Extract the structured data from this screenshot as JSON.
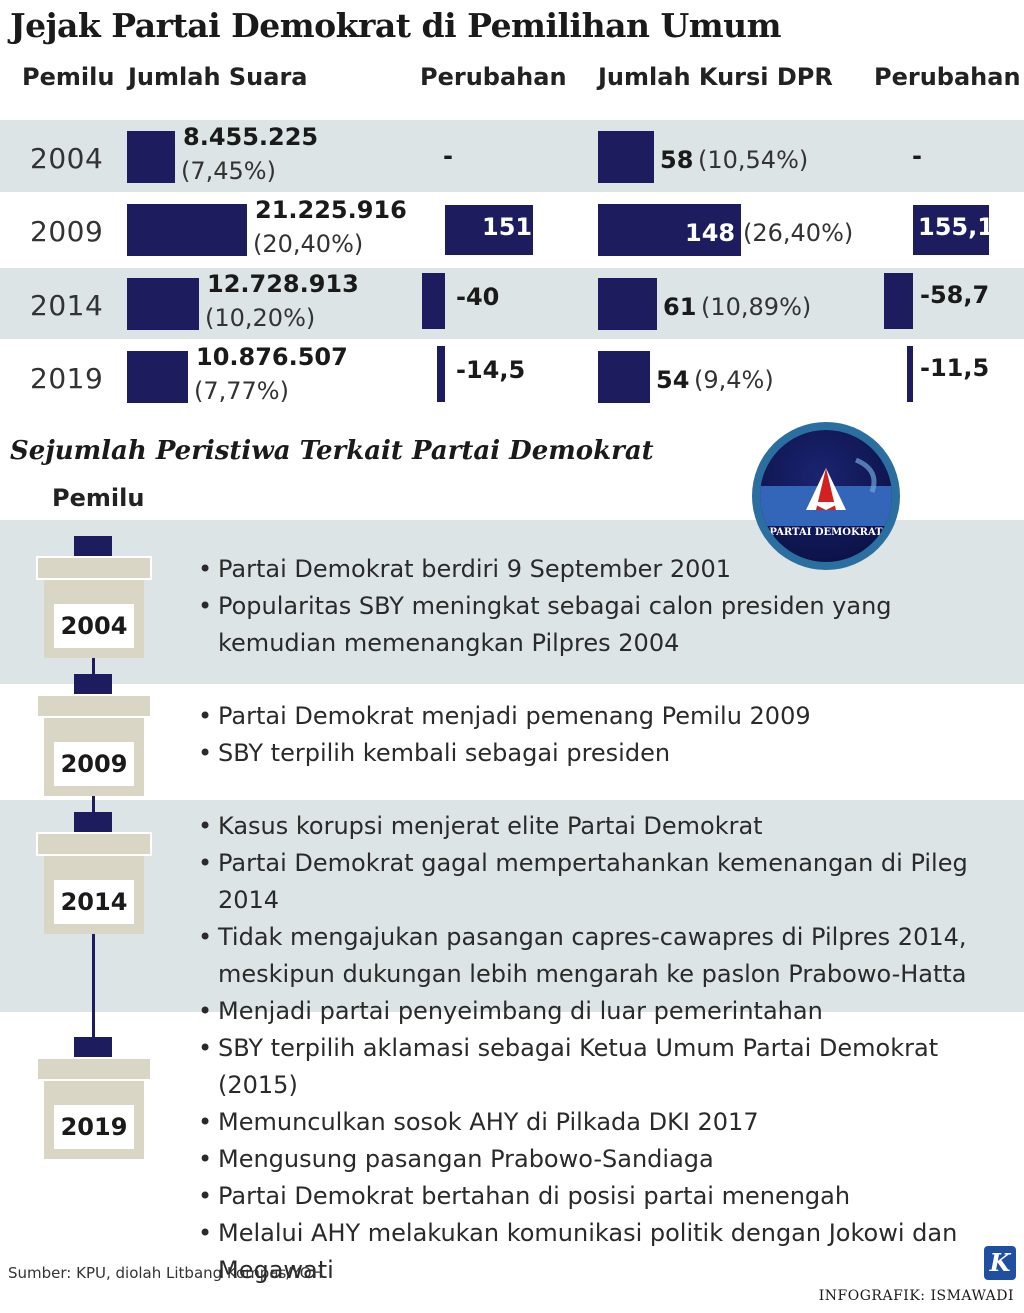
{
  "title": "Jejak Partai Demokrat di Pemilihan Umum",
  "table_headers": {
    "pemilu": "Pemilu",
    "suara": "Jumlah Suara",
    "perubahan_suara": "Perubahan",
    "kursi": "Jumlah Kursi DPR",
    "perubahan_kursi": "Perubahan"
  },
  "chart_data": {
    "type": "bar",
    "categories": [
      "2004",
      "2009",
      "2014",
      "2019"
    ],
    "series": [
      {
        "name": "Jumlah Suara",
        "values": [
          8455225,
          21225916,
          12728913,
          10876507
        ],
        "labels": [
          "8.455.225",
          "21.225.916",
          "12.728.913",
          "10.876.507"
        ],
        "pct_labels": [
          "(7,45%)",
          "(20,40%)",
          "(10,20%)",
          "(7,77%)"
        ]
      },
      {
        "name": "Perubahan",
        "values": [
          null,
          151,
          -40,
          -14.5
        ],
        "labels": [
          "-",
          "151",
          "-40",
          "-14,5"
        ]
      },
      {
        "name": "Jumlah Kursi DPR",
        "values": [
          58,
          148,
          61,
          54
        ],
        "labels": [
          "58",
          "148",
          "61",
          "54"
        ],
        "pct_labels": [
          "(10,54%)",
          "(26,40%)",
          "(10,89%)",
          "(9,4%)"
        ]
      },
      {
        "name": "Perubahan",
        "values": [
          null,
          155.1,
          -58.7,
          -11.5
        ],
        "labels": [
          "-",
          "155,1",
          "-58,7",
          "-11,5"
        ]
      }
    ]
  },
  "events_section": {
    "title": "Sejumlah Peristiwa Terkait Partai Demokrat",
    "pemilu_label": "Pemilu",
    "groups": [
      {
        "year": "2004",
        "items": [
          "Partai Demokrat berdiri 9 September 2001",
          "Popularitas SBY meningkat sebagai calon presiden yang kemudian memenangkan Pilpres 2004"
        ]
      },
      {
        "year": "2009",
        "items": [
          "Partai Demokrat menjadi pemenang Pemilu 2009",
          "SBY terpilih kembali sebagai presiden"
        ]
      },
      {
        "year": "2014",
        "items": [
          "Kasus korupsi menjerat elite Partai Demokrat",
          "Partai Demokrat gagal mempertahankan kemenangan di Pileg 2014",
          "Tidak mengajukan pasangan capres-cawapres di Pilpres 2014, meskipun dukungan lebih mengarah ke paslon Prabowo-Hatta",
          "Menjadi partai penyeimbang di luar pemerintahan"
        ]
      },
      {
        "year": "2019",
        "items": [
          "SBY terpilih aklamasi sebagai Ketua Umum Partai Demokrat (2015)",
          "Memunculkan sosok AHY di Pilkada DKI 2017",
          "Mengusung pasangan Prabowo-Sandiaga",
          "Partai Demokrat bertahan  di posisi partai menengah",
          "Melalui AHY melakukan komunikasi politik dengan Jokowi dan Megawati"
        ]
      }
    ]
  },
  "logo": {
    "text": "PARTAI DEMOKRAT"
  },
  "footer": {
    "source": "Sumber: KPU, diolah Litbang Kompas/YOH",
    "credit": "INFOGRAFIK: ISMAWADI",
    "k_logo": "K"
  },
  "colors": {
    "bar": "#1c1c5f",
    "stripe": "#dde4e6",
    "ballot": "#d9d6c6"
  }
}
